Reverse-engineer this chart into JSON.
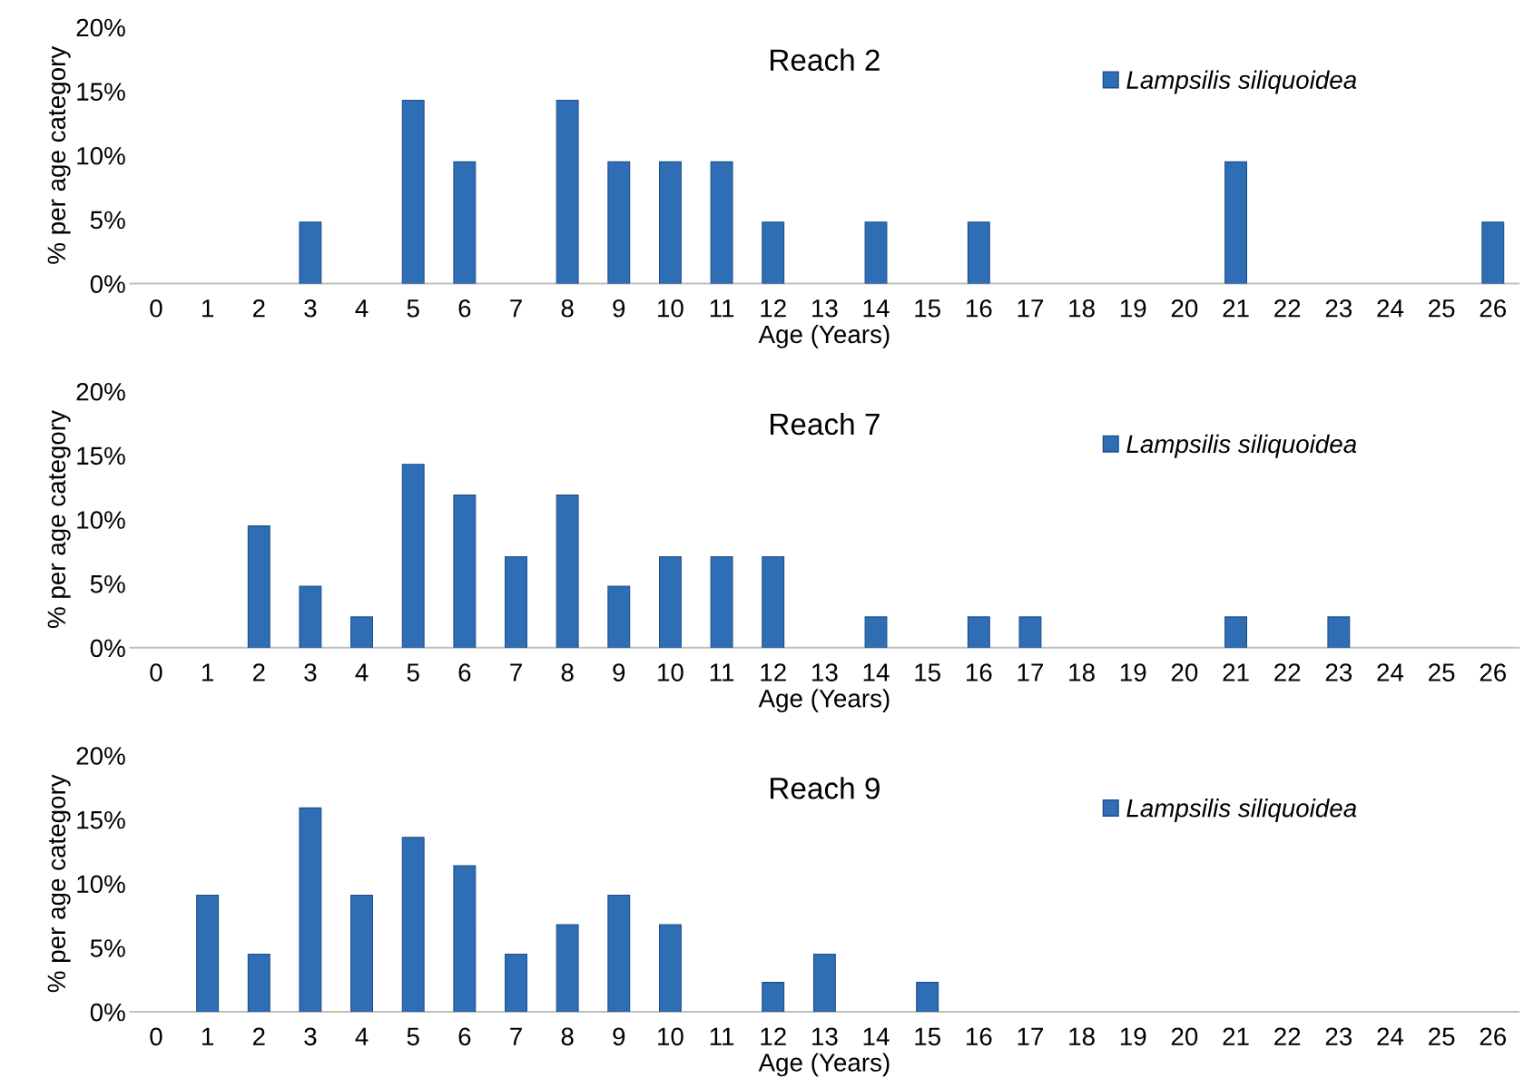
{
  "chart_data": [
    {
      "type": "bar",
      "title": "Reach 2",
      "xlabel": "Age (Years)",
      "ylabel": "% per age category",
      "categories": [
        "0",
        "1",
        "2",
        "3",
        "4",
        "5",
        "6",
        "7",
        "8",
        "9",
        "10",
        "11",
        "12",
        "13",
        "14",
        "15",
        "16",
        "17",
        "18",
        "19",
        "20",
        "21",
        "22",
        "23",
        "24",
        "25",
        "26"
      ],
      "series": [
        {
          "name": "Lampsilis siliquoidea",
          "color": "#2f6db5",
          "values": [
            0,
            0,
            0,
            4.8,
            0,
            14.3,
            9.5,
            0,
            14.3,
            9.5,
            9.5,
            9.5,
            4.8,
            0,
            4.8,
            0,
            4.8,
            0,
            0,
            0,
            0,
            9.5,
            0,
            0,
            0,
            0,
            4.8
          ]
        }
      ],
      "ylim": [
        0,
        20
      ],
      "yticks": [
        {
          "value": 0,
          "label": "0%"
        },
        {
          "value": 5,
          "label": "5%"
        },
        {
          "value": 10,
          "label": "10%"
        },
        {
          "value": 15,
          "label": "15%"
        },
        {
          "value": 20,
          "label": "20%"
        }
      ],
      "grid": false,
      "legend": "top right"
    },
    {
      "type": "bar",
      "title": "Reach 7",
      "xlabel": "Age (Years)",
      "ylabel": "% per age category",
      "categories": [
        "0",
        "1",
        "2",
        "3",
        "4",
        "5",
        "6",
        "7",
        "8",
        "9",
        "10",
        "11",
        "12",
        "13",
        "14",
        "15",
        "16",
        "17",
        "18",
        "19",
        "20",
        "21",
        "22",
        "23",
        "24",
        "25",
        "26"
      ],
      "series": [
        {
          "name": "Lampsilis siliquoidea",
          "color": "#2f6db5",
          "values": [
            0,
            0,
            9.5,
            4.8,
            2.4,
            14.3,
            11.9,
            7.1,
            11.9,
            4.8,
            7.1,
            7.1,
            7.1,
            0,
            2.4,
            0,
            2.4,
            2.4,
            0,
            0,
            0,
            2.4,
            0,
            2.4,
            0,
            0,
            0
          ]
        }
      ],
      "ylim": [
        0,
        20
      ],
      "yticks": [
        {
          "value": 0,
          "label": "0%"
        },
        {
          "value": 5,
          "label": "5%"
        },
        {
          "value": 10,
          "label": "10%"
        },
        {
          "value": 15,
          "label": "15%"
        },
        {
          "value": 20,
          "label": "20%"
        }
      ],
      "grid": false,
      "legend": "top right"
    },
    {
      "type": "bar",
      "title": "Reach 9",
      "xlabel": "Age (Years)",
      "ylabel": "% per age category",
      "categories": [
        "0",
        "1",
        "2",
        "3",
        "4",
        "5",
        "6",
        "7",
        "8",
        "9",
        "10",
        "11",
        "12",
        "13",
        "14",
        "15",
        "16",
        "17",
        "18",
        "19",
        "20",
        "21",
        "22",
        "23",
        "24",
        "25",
        "26"
      ],
      "series": [
        {
          "name": "Lampsilis siliquoidea",
          "color": "#2f6db5",
          "values": [
            0,
            9.1,
            4.5,
            15.9,
            9.1,
            13.6,
            11.4,
            4.5,
            6.8,
            9.1,
            6.8,
            0,
            2.3,
            4.5,
            0,
            2.3,
            0,
            0,
            0,
            0,
            0,
            0,
            0,
            0,
            0,
            0,
            0
          ]
        }
      ],
      "ylim": [
        0,
        20
      ],
      "yticks": [
        {
          "value": 0,
          "label": "0%"
        },
        {
          "value": 5,
          "label": "5%"
        },
        {
          "value": 10,
          "label": "10%"
        },
        {
          "value": 15,
          "label": "15%"
        },
        {
          "value": 20,
          "label": "20%"
        }
      ],
      "grid": false,
      "legend": "top right"
    }
  ]
}
